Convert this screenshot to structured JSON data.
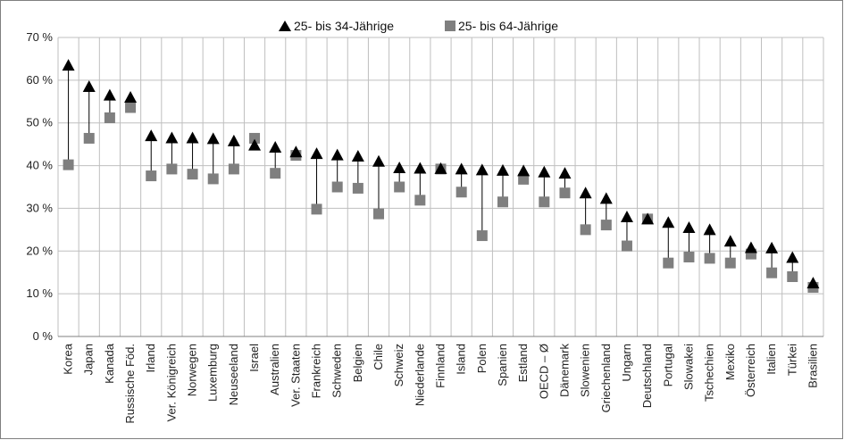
{
  "chart_data": {
    "type": "scatter",
    "categories": [
      "Korea",
      "Japan",
      "Kanada",
      "Russische Föd.",
      "Irland",
      "Ver. Königreich",
      "Norwegen",
      "Luxemburg",
      "Neuseeland",
      "Israel",
      "Australien",
      "Ver. Staaten",
      "Frankreich",
      "Schweden",
      "Belgien",
      "Chile",
      "Schweiz",
      "Niederlande",
      "Finnland",
      "Island",
      "Polen",
      "Spanien",
      "Estland",
      "OECD – Ø",
      "Dänemark",
      "Slowenien",
      "Griechenland",
      "Ungarn",
      "Deutschland",
      "Portugal",
      "Slowakei",
      "Tschechien",
      "Mexiko",
      "Österreich",
      "Italien",
      "Türkei",
      "Brasilien"
    ],
    "series": [
      {
        "name": "25- bis 34-Jährige",
        "marker": "triangle",
        "color": "#000000",
        "values": [
          63.5,
          58.5,
          56.5,
          56,
          47,
          46.5,
          46.5,
          46.3,
          45.8,
          44.8,
          44.3,
          43.2,
          42.8,
          42.5,
          42.2,
          41,
          39.5,
          39.4,
          39.3,
          39.2,
          39,
          38.9,
          38.8,
          38.5,
          38.2,
          33.6,
          32.3,
          28,
          27.5,
          26.7,
          25.5,
          25,
          22.3,
          20.8,
          20.7,
          18.5,
          12.5
        ]
      },
      {
        "name": "25- bis 64-Jährige",
        "marker": "square",
        "color": "#7f7f7f",
        "values": [
          40.2,
          46.4,
          51.2,
          53.6,
          37.6,
          39.2,
          38,
          36.9,
          39.2,
          46.4,
          38.2,
          42.4,
          29.8,
          35,
          34.7,
          28.7,
          35,
          31.9,
          39.2,
          33.8,
          23.6,
          31.5,
          36.8,
          31.5,
          33.6,
          25,
          26.1,
          21.2,
          27.5,
          17.2,
          18.6,
          18.3,
          17.2,
          19.3,
          14.9,
          14,
          11.5
        ]
      }
    ],
    "ylim": [
      0,
      70
    ],
    "yticks": [
      "0 %",
      "10 %",
      "20 %",
      "30 %",
      "40 %",
      "50 %",
      "60 %",
      "70 %"
    ],
    "grid": true,
    "legend_position": "top"
  }
}
